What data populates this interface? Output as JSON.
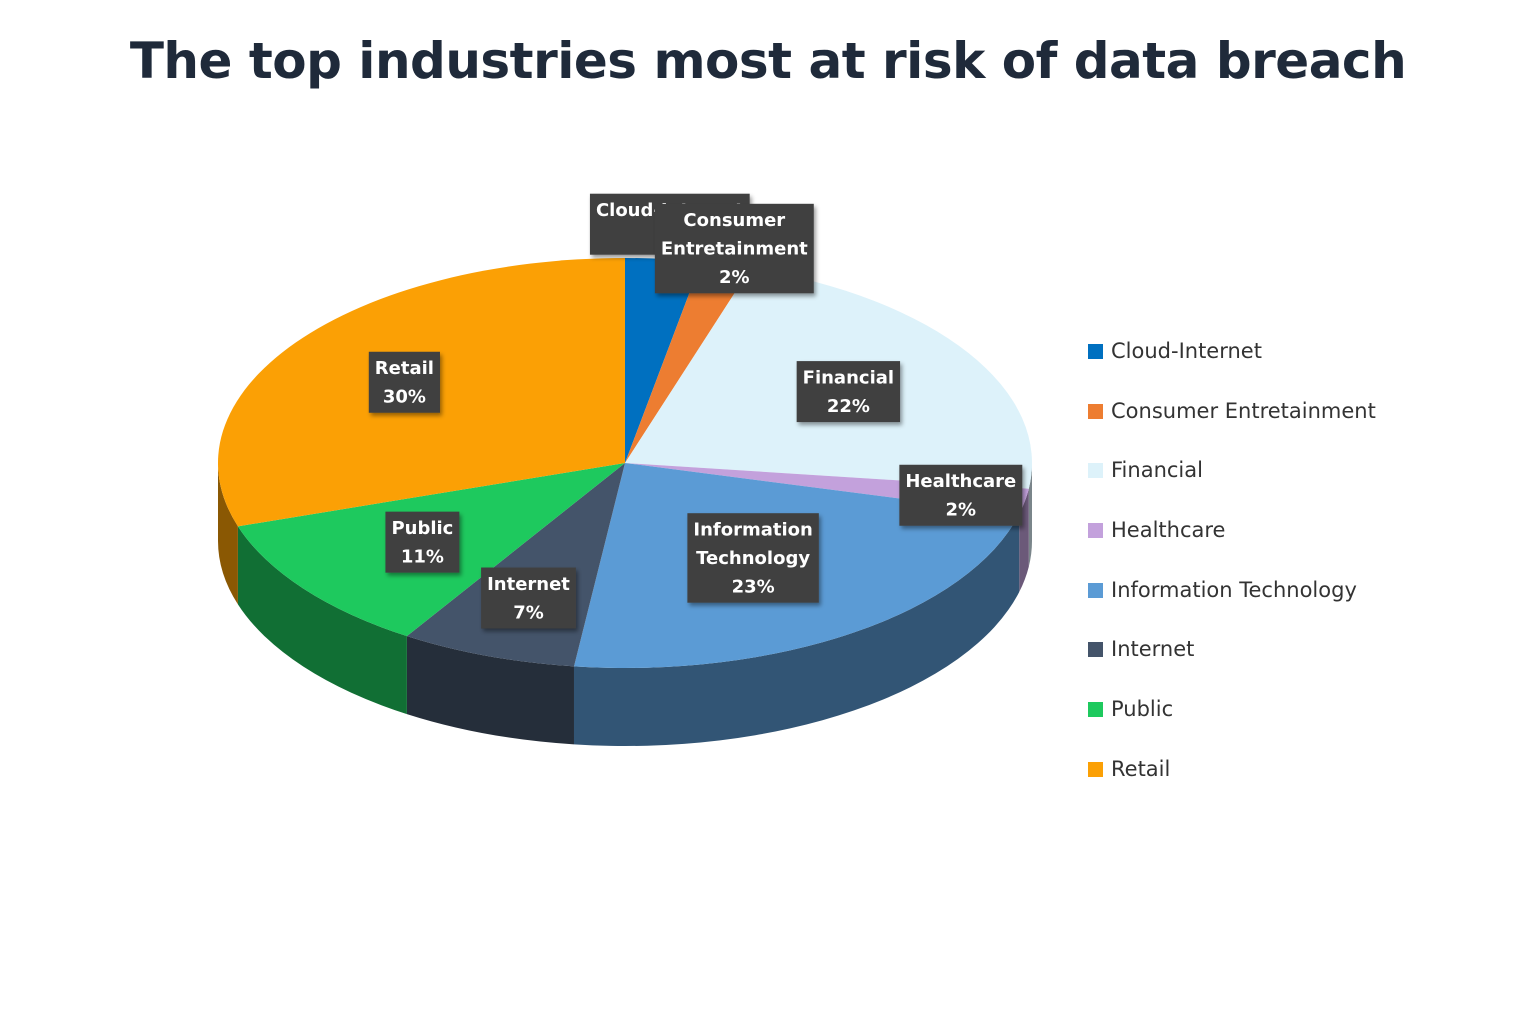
{
  "chart_data": {
    "type": "pie",
    "title": "The top industries most at risk of data breach",
    "categories": [
      "Cloud-Internet",
      "Consumer Entretainment",
      "Financial",
      "Healthcare",
      "Information Technology",
      "Internet",
      "Public",
      "Retail"
    ],
    "values": [
      3,
      2,
      22,
      2,
      23,
      7,
      11,
      30
    ],
    "value_labels": [
      "3%",
      "2%",
      "22%",
      "2%",
      "23%",
      "7%",
      "11%",
      "30%"
    ],
    "data_labels": [
      [
        "Cloud-Internet",
        "3%"
      ],
      [
        "Consumer",
        "Entretainment",
        "2%"
      ],
      [
        "Financial",
        "22%"
      ],
      [
        "Healthcare",
        "2%"
      ],
      [
        "Information",
        "Technology",
        "23%"
      ],
      [
        "Internet",
        "7%"
      ],
      [
        "Public",
        "11%"
      ],
      [
        "Retail",
        "30%"
      ]
    ],
    "colors": [
      "#0070c0",
      "#ed7d31",
      "#ddf2fa",
      "#c3a1dc",
      "#5b9bd5",
      "#44546a",
      "#1ec95e",
      "#fba005"
    ],
    "legend_position": "right",
    "style": "3d"
  }
}
